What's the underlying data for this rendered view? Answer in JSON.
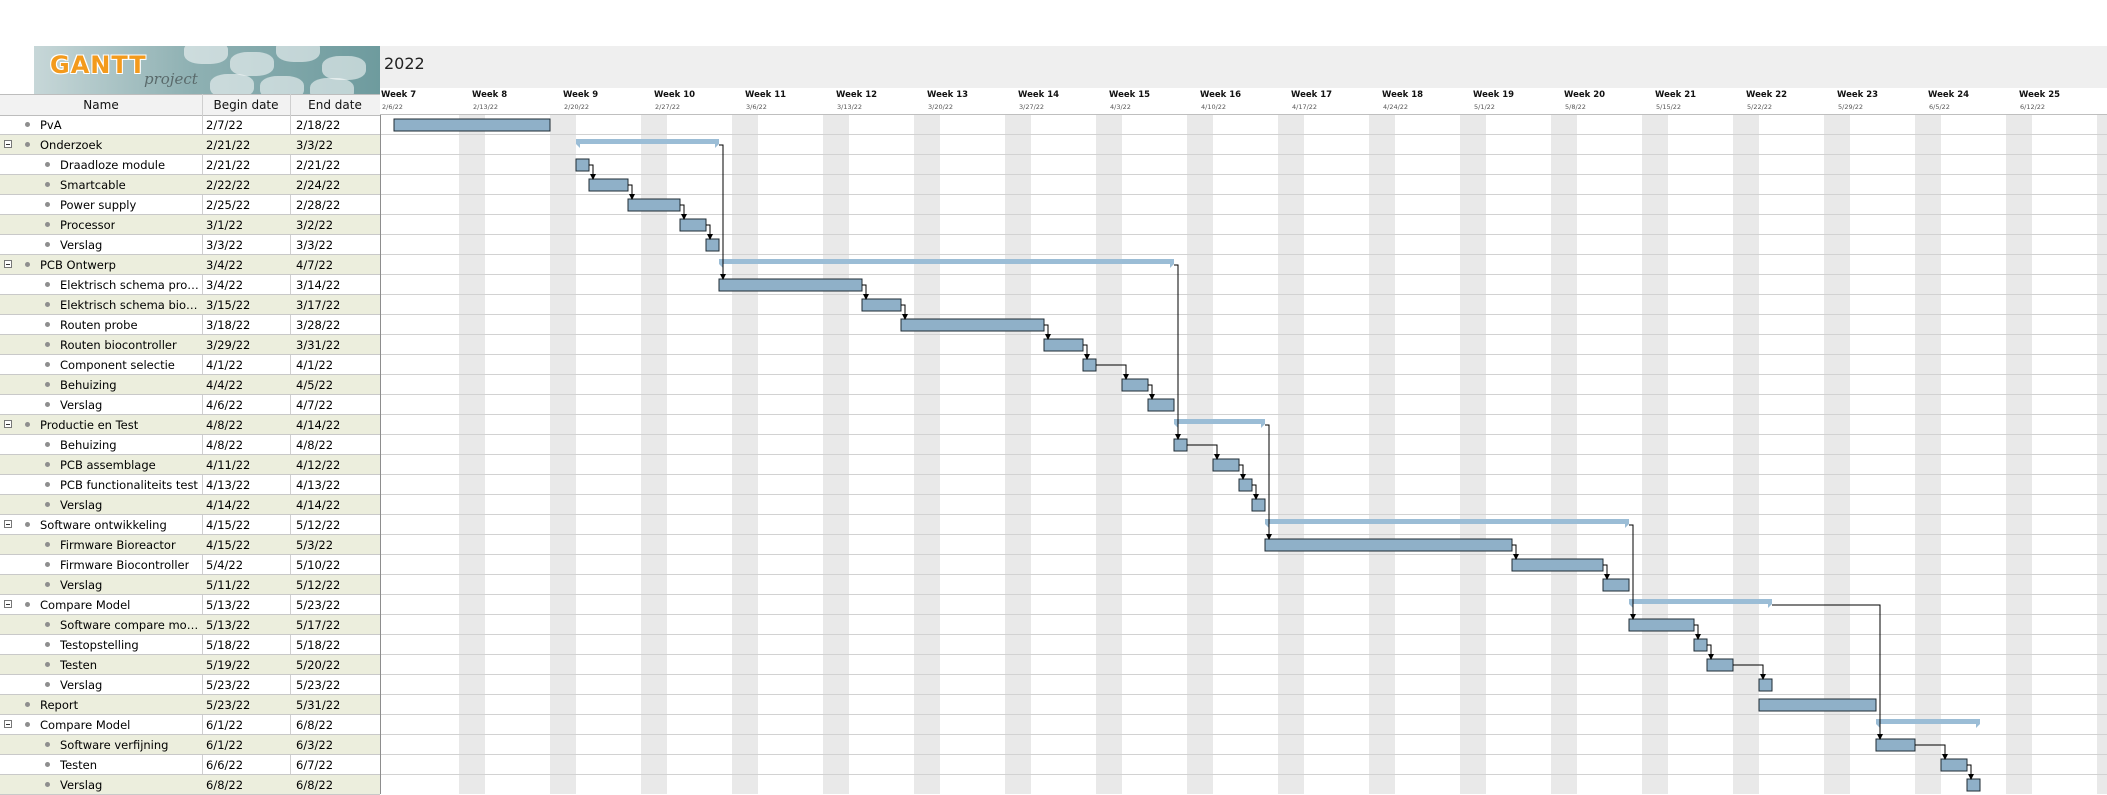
{
  "app": {
    "logo_text": "GANTT",
    "logo_sub": "project"
  },
  "timeline": {
    "year": "2022",
    "weeks": [
      {
        "name": "Week 7",
        "date": "2/6/22"
      },
      {
        "name": "Week 8",
        "date": "2/13/22"
      },
      {
        "name": "Week 9",
        "date": "2/20/22"
      },
      {
        "name": "Week 10",
        "date": "2/27/22"
      },
      {
        "name": "Week 11",
        "date": "3/6/22"
      },
      {
        "name": "Week 12",
        "date": "3/13/22"
      },
      {
        "name": "Week 13",
        "date": "3/20/22"
      },
      {
        "name": "Week 14",
        "date": "3/27/22"
      },
      {
        "name": "Week 15",
        "date": "4/3/22"
      },
      {
        "name": "Week 16",
        "date": "4/10/22"
      },
      {
        "name": "Week 17",
        "date": "4/17/22"
      },
      {
        "name": "Week 18",
        "date": "4/24/22"
      },
      {
        "name": "Week 19",
        "date": "5/1/22"
      },
      {
        "name": "Week 20",
        "date": "5/8/22"
      },
      {
        "name": "Week 21",
        "date": "5/15/22"
      },
      {
        "name": "Week 22",
        "date": "5/22/22"
      },
      {
        "name": "Week 23",
        "date": "5/29/22"
      },
      {
        "name": "Week 24",
        "date": "6/5/22"
      },
      {
        "name": "Week 25",
        "date": "6/12/22"
      }
    ]
  },
  "table": {
    "headers": {
      "name": "Name",
      "begin": "Begin date",
      "end": "End date"
    },
    "rows": [
      {
        "name": "PvA",
        "begin": "2/7/22",
        "end": "2/18/22",
        "level": 0,
        "group": false
      },
      {
        "name": "Onderzoek",
        "begin": "2/21/22",
        "end": "3/3/22",
        "level": 0,
        "group": true
      },
      {
        "name": "Draadloze module",
        "begin": "2/21/22",
        "end": "2/21/22",
        "level": 1,
        "group": false
      },
      {
        "name": "Smartcable",
        "begin": "2/22/22",
        "end": "2/24/22",
        "level": 1,
        "group": false
      },
      {
        "name": "Power supply",
        "begin": "2/25/22",
        "end": "2/28/22",
        "level": 1,
        "group": false
      },
      {
        "name": "Processor",
        "begin": "3/1/22",
        "end": "3/2/22",
        "level": 1,
        "group": false
      },
      {
        "name": "Verslag",
        "begin": "3/3/22",
        "end": "3/3/22",
        "level": 1,
        "group": false
      },
      {
        "name": "PCB Ontwerp",
        "begin": "3/4/22",
        "end": "4/7/22",
        "level": 0,
        "group": true
      },
      {
        "name": "Elektrisch schema probe",
        "begin": "3/4/22",
        "end": "3/14/22",
        "level": 1,
        "group": false
      },
      {
        "name": "Elektrisch schema bioco…",
        "begin": "3/15/22",
        "end": "3/17/22",
        "level": 1,
        "group": false
      },
      {
        "name": "Routen probe",
        "begin": "3/18/22",
        "end": "3/28/22",
        "level": 1,
        "group": false
      },
      {
        "name": "Routen biocontroller",
        "begin": "3/29/22",
        "end": "3/31/22",
        "level": 1,
        "group": false
      },
      {
        "name": "Component selectie",
        "begin": "4/1/22",
        "end": "4/1/22",
        "level": 1,
        "group": false
      },
      {
        "name": "Behuizing",
        "begin": "4/4/22",
        "end": "4/5/22",
        "level": 1,
        "group": false
      },
      {
        "name": "Verslag",
        "begin": "4/6/22",
        "end": "4/7/22",
        "level": 1,
        "group": false
      },
      {
        "name": "Productie en Test",
        "begin": "4/8/22",
        "end": "4/14/22",
        "level": 0,
        "group": true
      },
      {
        "name": "Behuizing",
        "begin": "4/8/22",
        "end": "4/8/22",
        "level": 1,
        "group": false
      },
      {
        "name": "PCB assemblage",
        "begin": "4/11/22",
        "end": "4/12/22",
        "level": 1,
        "group": false
      },
      {
        "name": "PCB functionaliteits test",
        "begin": "4/13/22",
        "end": "4/13/22",
        "level": 1,
        "group": false
      },
      {
        "name": "Verslag",
        "begin": "4/14/22",
        "end": "4/14/22",
        "level": 1,
        "group": false
      },
      {
        "name": "Software ontwikkeling",
        "begin": "4/15/22",
        "end": "5/12/22",
        "level": 0,
        "group": true
      },
      {
        "name": "Firmware Bioreactor",
        "begin": "4/15/22",
        "end": "5/3/22",
        "level": 1,
        "group": false
      },
      {
        "name": "Firmware Biocontroller",
        "begin": "5/4/22",
        "end": "5/10/22",
        "level": 1,
        "group": false
      },
      {
        "name": "Verslag",
        "begin": "5/11/22",
        "end": "5/12/22",
        "level": 1,
        "group": false
      },
      {
        "name": "Compare Model",
        "begin": "5/13/22",
        "end": "5/23/22",
        "level": 0,
        "group": true
      },
      {
        "name": "Software compare model",
        "begin": "5/13/22",
        "end": "5/17/22",
        "level": 1,
        "group": false
      },
      {
        "name": "Testopstelling",
        "begin": "5/18/22",
        "end": "5/18/22",
        "level": 1,
        "group": false
      },
      {
        "name": "Testen",
        "begin": "5/19/22",
        "end": "5/20/22",
        "level": 1,
        "group": false
      },
      {
        "name": "Verslag",
        "begin": "5/23/22",
        "end": "5/23/22",
        "level": 1,
        "group": false
      },
      {
        "name": "Report",
        "begin": "5/23/22",
        "end": "5/31/22",
        "level": 0,
        "group": false
      },
      {
        "name": "Compare Model",
        "begin": "6/1/22",
        "end": "6/8/22",
        "level": 0,
        "group": true
      },
      {
        "name": "Software verfijning",
        "begin": "6/1/22",
        "end": "6/3/22",
        "level": 1,
        "group": false
      },
      {
        "name": "Testen",
        "begin": "6/6/22",
        "end": "6/7/22",
        "level": 1,
        "group": false
      },
      {
        "name": "Verslag",
        "begin": "6/8/22",
        "end": "6/8/22",
        "level": 1,
        "group": false
      }
    ]
  },
  "colors": {
    "task_bar": "#8fb0c8",
    "task_border": "#1f2b33",
    "summary_bar": "#9bbdd6",
    "weekend_shade": "#e9e9e9",
    "row_alt": "#eceedd",
    "arrow": "#000000"
  }
}
